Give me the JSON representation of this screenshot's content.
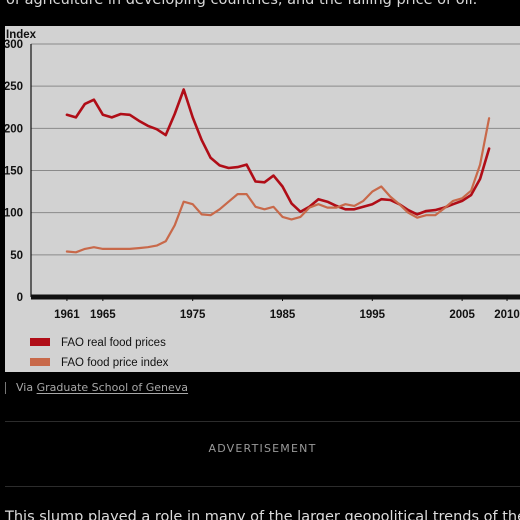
{
  "article": {
    "intro_text": "of agriculture in developing countries, and the falling price of oil.",
    "caption_prefix": "Via",
    "caption_link": "Graduate School of Geneva",
    "advertisement_label": "ADVERTISEMENT",
    "continuation_text": "This slump played a role in many of the larger geopolitical trends of the era"
  },
  "chart_data": {
    "type": "line",
    "title": "",
    "ylabel": "Index",
    "xlabel": "",
    "ylim": [
      0,
      300
    ],
    "xlim": [
      1957,
      2012
    ],
    "yticks": [
      0,
      50,
      100,
      150,
      200,
      250,
      300
    ],
    "xticks": [
      1961,
      1965,
      1975,
      1985,
      1995,
      2005,
      2010
    ],
    "grid": true,
    "legend_position": "bottom-left",
    "series": [
      {
        "name": "FAO real food prices",
        "color": "#b00d17",
        "points": [
          [
            1961,
            216
          ],
          [
            1962,
            213
          ],
          [
            1963,
            229
          ],
          [
            1964,
            234
          ],
          [
            1965,
            216
          ],
          [
            1966,
            213
          ],
          [
            1967,
            217
          ],
          [
            1968,
            216
          ],
          [
            1969,
            209
          ],
          [
            1970,
            203
          ],
          [
            1971,
            199
          ],
          [
            1972,
            192
          ],
          [
            1973,
            217
          ],
          [
            1974,
            246
          ],
          [
            1975,
            213
          ],
          [
            1976,
            186
          ],
          [
            1977,
            165
          ],
          [
            1978,
            156
          ],
          [
            1979,
            153
          ],
          [
            1980,
            154
          ],
          [
            1981,
            157
          ],
          [
            1982,
            137
          ],
          [
            1983,
            136
          ],
          [
            1984,
            144
          ],
          [
            1985,
            131
          ],
          [
            1986,
            111
          ],
          [
            1987,
            101
          ],
          [
            1988,
            107
          ],
          [
            1989,
            116
          ],
          [
            1990,
            113
          ],
          [
            1991,
            108
          ],
          [
            1992,
            104
          ],
          [
            1993,
            104
          ],
          [
            1994,
            107
          ],
          [
            1995,
            110
          ],
          [
            1996,
            116
          ],
          [
            1997,
            115
          ],
          [
            1998,
            110
          ],
          [
            1999,
            103
          ],
          [
            2000,
            98
          ],
          [
            2001,
            102
          ],
          [
            2002,
            103
          ],
          [
            2003,
            106
          ],
          [
            2004,
            110
          ],
          [
            2005,
            114
          ],
          [
            2006,
            121
          ],
          [
            2007,
            140
          ],
          [
            2008,
            176
          ]
        ]
      },
      {
        "name": "FAO food price index",
        "color": "#c8694a",
        "points": [
          [
            1961,
            54
          ],
          [
            1962,
            53
          ],
          [
            1963,
            57
          ],
          [
            1964,
            59
          ],
          [
            1965,
            57
          ],
          [
            1966,
            57
          ],
          [
            1967,
            57
          ],
          [
            1968,
            57
          ],
          [
            1969,
            58
          ],
          [
            1970,
            59
          ],
          [
            1971,
            61
          ],
          [
            1972,
            66
          ],
          [
            1973,
            85
          ],
          [
            1974,
            113
          ],
          [
            1975,
            110
          ],
          [
            1976,
            98
          ],
          [
            1977,
            97
          ],
          [
            1978,
            104
          ],
          [
            1979,
            113
          ],
          [
            1980,
            122
          ],
          [
            1981,
            122
          ],
          [
            1982,
            107
          ],
          [
            1983,
            104
          ],
          [
            1984,
            107
          ],
          [
            1985,
            95
          ],
          [
            1986,
            92
          ],
          [
            1987,
            95
          ],
          [
            1988,
            106
          ],
          [
            1989,
            110
          ],
          [
            1990,
            106
          ],
          [
            1991,
            106
          ],
          [
            1992,
            110
          ],
          [
            1993,
            108
          ],
          [
            1994,
            114
          ],
          [
            1995,
            125
          ],
          [
            1996,
            131
          ],
          [
            1997,
            119
          ],
          [
            1998,
            110
          ],
          [
            1999,
            100
          ],
          [
            2000,
            94
          ],
          [
            2001,
            97
          ],
          [
            2002,
            97
          ],
          [
            2003,
            105
          ],
          [
            2004,
            114
          ],
          [
            2005,
            117
          ],
          [
            2006,
            126
          ],
          [
            2007,
            157
          ],
          [
            2008,
            212
          ]
        ]
      }
    ]
  }
}
